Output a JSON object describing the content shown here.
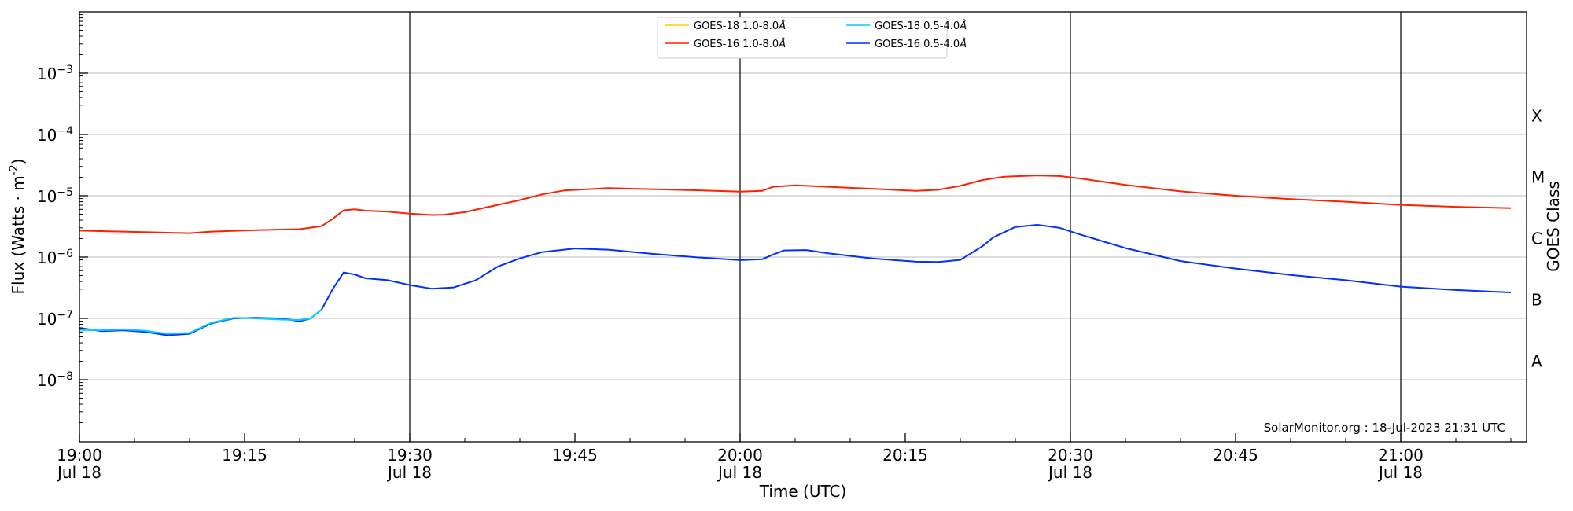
{
  "chart_data": {
    "type": "line",
    "title": "",
    "xlabel": "Time (UTC)",
    "ylabel": "Flux (Watts · m",
    "ylabel_sup": "-2",
    "ylabel_close": ")",
    "y2label": "GOES Class",
    "yscale": "log",
    "ylim": [
      1e-09,
      0.01
    ],
    "xlim": [
      "2023-07-18 19:00",
      "2023-07-18 21:11"
    ],
    "x_ticks": [
      {
        "time": "19:00",
        "date": "Jul 18",
        "minutes": 0
      },
      {
        "time": "19:15",
        "date": "",
        "minutes": 15
      },
      {
        "time": "19:30",
        "date": "Jul 18",
        "minutes": 30
      },
      {
        "time": "19:45",
        "date": "",
        "minutes": 45
      },
      {
        "time": "20:00",
        "date": "Jul 18",
        "minutes": 60
      },
      {
        "time": "20:15",
        "date": "",
        "minutes": 75
      },
      {
        "time": "20:30",
        "date": "Jul 18",
        "minutes": 90
      },
      {
        "time": "20:45",
        "date": "",
        "minutes": 105
      },
      {
        "time": "21:00",
        "date": "Jul 18",
        "minutes": 120
      }
    ],
    "y_ticks": [
      {
        "base": "10",
        "exp": "−3",
        "value": 0.001
      },
      {
        "base": "10",
        "exp": "−4",
        "value": 0.0001
      },
      {
        "base": "10",
        "exp": "−5",
        "value": 1e-05
      },
      {
        "base": "10",
        "exp": "−6",
        "value": 1e-06
      },
      {
        "base": "10",
        "exp": "−7",
        "value": 1e-07
      },
      {
        "base": "10",
        "exp": "−8",
        "value": 1e-08
      }
    ],
    "goes_classes": [
      {
        "label": "X",
        "value": 0.0002
      },
      {
        "label": "M",
        "value": 2e-05
      },
      {
        "label": "C",
        "value": 2e-06
      },
      {
        "label": "B",
        "value": 2e-07
      },
      {
        "label": "A",
        "value": 2e-08
      }
    ],
    "grid": "horizontal at decades; vertical lines every 30 min",
    "legend_position": "top-center",
    "legend": [
      {
        "label": "GOES-18 1.0-8.0",
        "color": "#ffcc00"
      },
      {
        "label": "GOES-18 0.5-4.0",
        "color": "#00ccff"
      },
      {
        "label": "GOES-16 1.0-8.0",
        "color": "#ff2000"
      },
      {
        "label": "GOES-16 0.5-4.0",
        "color": "#0030ff"
      }
    ],
    "angstrom": "Å",
    "annotation": "SolarMonitor.org : 18-Jul-2023 21:31 UTC",
    "series": [
      {
        "name": "GOES-16 1.0-8.0",
        "color": "#ff2000",
        "points": [
          [
            0,
            2.7e-06
          ],
          [
            4,
            2.6e-06
          ],
          [
            8,
            2.5e-06
          ],
          [
            10,
            2.45e-06
          ],
          [
            12,
            2.6e-06
          ],
          [
            16,
            2.75e-06
          ],
          [
            20,
            2.85e-06
          ],
          [
            22,
            3.2e-06
          ],
          [
            23,
            4.2e-06
          ],
          [
            24,
            5.8e-06
          ],
          [
            25,
            6e-06
          ],
          [
            26,
            5.7e-06
          ],
          [
            28,
            5.5e-06
          ],
          [
            30,
            5.1e-06
          ],
          [
            32,
            4.85e-06
          ],
          [
            33,
            4.9e-06
          ],
          [
            35,
            5.4e-06
          ],
          [
            37,
            6.5e-06
          ],
          [
            40,
            8.5e-06
          ],
          [
            42,
            1.05e-05
          ],
          [
            44,
            1.22e-05
          ],
          [
            48,
            1.33e-05
          ],
          [
            52,
            1.28e-05
          ],
          [
            56,
            1.23e-05
          ],
          [
            60,
            1.17e-05
          ],
          [
            62,
            1.2e-05
          ],
          [
            63,
            1.4e-05
          ],
          [
            65,
            1.48e-05
          ],
          [
            68,
            1.4e-05
          ],
          [
            72,
            1.3e-05
          ],
          [
            76,
            1.2e-05
          ],
          [
            78,
            1.25e-05
          ],
          [
            80,
            1.45e-05
          ],
          [
            82,
            1.8e-05
          ],
          [
            84,
            2.05e-05
          ],
          [
            87,
            2.15e-05
          ],
          [
            89,
            2.1e-05
          ],
          [
            91,
            1.9e-05
          ],
          [
            95,
            1.5e-05
          ],
          [
            100,
            1.18e-05
          ],
          [
            105,
            1e-05
          ],
          [
            110,
            8.8e-06
          ],
          [
            115,
            8e-06
          ],
          [
            120,
            7.1e-06
          ],
          [
            125,
            6.6e-06
          ],
          [
            130,
            6.3e-06
          ]
        ]
      },
      {
        "name": "GOES-16 0.5-4.0",
        "color": "#0030ff",
        "points": [
          [
            0,
            7e-08
          ],
          [
            2,
            6.2e-08
          ],
          [
            4,
            6.4e-08
          ],
          [
            6,
            6e-08
          ],
          [
            8,
            5.3e-08
          ],
          [
            10,
            5.6e-08
          ],
          [
            12,
            8.3e-08
          ],
          [
            14,
            1e-07
          ],
          [
            16,
            1.02e-07
          ],
          [
            18,
            1e-07
          ],
          [
            19,
            9.6e-08
          ],
          [
            20,
            9e-08
          ],
          [
            21,
            1e-07
          ],
          [
            22,
            1.4e-07
          ],
          [
            23,
            3e-07
          ],
          [
            24,
            5.6e-07
          ],
          [
            25,
            5.2e-07
          ],
          [
            26,
            4.5e-07
          ],
          [
            28,
            4.2e-07
          ],
          [
            30,
            3.5e-07
          ],
          [
            32,
            3.05e-07
          ],
          [
            34,
            3.2e-07
          ],
          [
            36,
            4.2e-07
          ],
          [
            38,
            7e-07
          ],
          [
            40,
            9.5e-07
          ],
          [
            42,
            1.2e-06
          ],
          [
            45,
            1.38e-06
          ],
          [
            48,
            1.32e-06
          ],
          [
            52,
            1.13e-06
          ],
          [
            56,
            9.9e-07
          ],
          [
            60,
            8.9e-07
          ],
          [
            62,
            9.2e-07
          ],
          [
            63,
            1.1e-06
          ],
          [
            64,
            1.28e-06
          ],
          [
            66,
            1.3e-06
          ],
          [
            68,
            1.15e-06
          ],
          [
            72,
            9.5e-07
          ],
          [
            76,
            8.4e-07
          ],
          [
            78,
            8.3e-07
          ],
          [
            80,
            9e-07
          ],
          [
            82,
            1.5e-06
          ],
          [
            83,
            2.1e-06
          ],
          [
            85,
            3.1e-06
          ],
          [
            87,
            3.35e-06
          ],
          [
            89,
            3e-06
          ],
          [
            91,
            2.3e-06
          ],
          [
            95,
            1.4e-06
          ],
          [
            100,
            8.6e-07
          ],
          [
            105,
            6.5e-07
          ],
          [
            110,
            5.1e-07
          ],
          [
            115,
            4.2e-07
          ],
          [
            120,
            3.3e-07
          ],
          [
            125,
            2.9e-07
          ],
          [
            130,
            2.65e-07
          ]
        ]
      },
      {
        "name": "GOES-18 0.5-4.0",
        "color": "#00ccff",
        "points": [
          [
            0,
            6.5e-08
          ],
          [
            2,
            6.4e-08
          ],
          [
            4,
            6.6e-08
          ],
          [
            6,
            6.3e-08
          ],
          [
            8,
            5.6e-08
          ],
          [
            10,
            5.8e-08
          ],
          [
            12,
            8.5e-08
          ],
          [
            14,
            1.02e-07
          ],
          [
            16,
            1e-07
          ],
          [
            18,
            9.6e-08
          ],
          [
            20,
            9.4e-08
          ],
          [
            21,
            1e-07
          ],
          [
            22,
            1.4e-07
          ]
        ]
      }
    ]
  }
}
